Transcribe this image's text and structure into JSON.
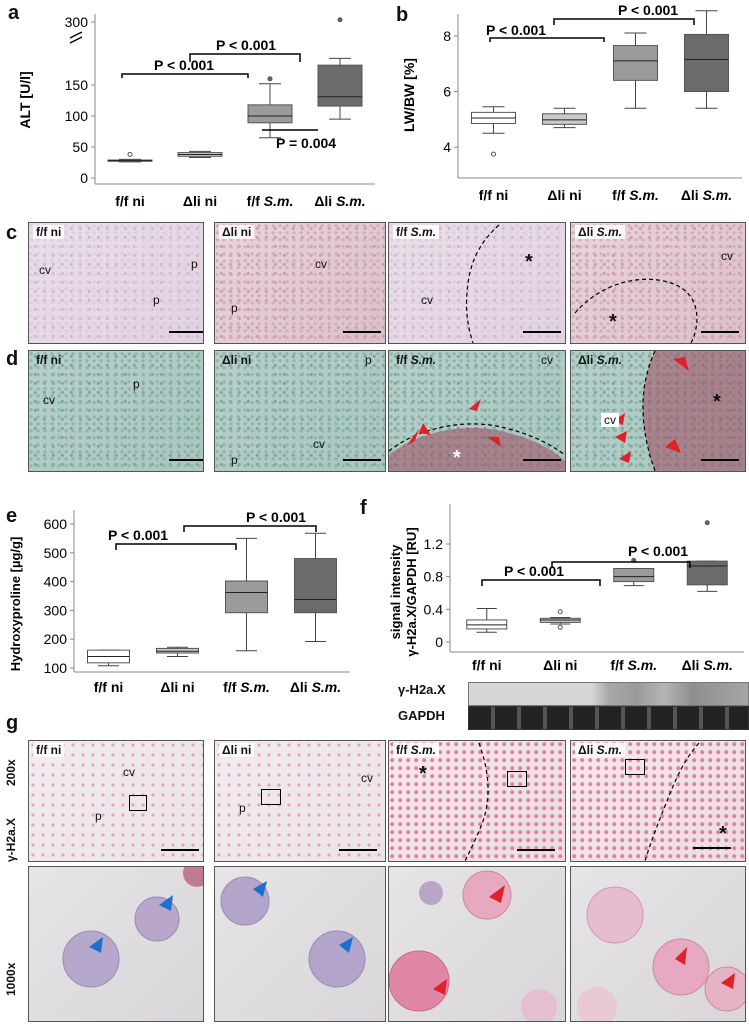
{
  "panel_letters": [
    "a",
    "b",
    "c",
    "d",
    "e",
    "f",
    "g"
  ],
  "groups": [
    "f/f ni",
    "Δli ni",
    "f/f S.m.",
    "Δli S.m."
  ],
  "group_parts": [
    [
      "f/f ni",
      ""
    ],
    [
      "Δli ni",
      ""
    ],
    [
      "f/f ",
      "S.m."
    ],
    [
      "Δli ",
      "S.m."
    ]
  ],
  "ylabels": {
    "a": "ALT [U/l]",
    "b": "LW/BW [%]",
    "e": "Hydroxyproline [µg/g]",
    "f_line1": "signal intensity",
    "f_line2": "γ-H2a.X/GAPDH [RU]"
  },
  "pvalues": {
    "a1": "P < 0.001",
    "a2": "P < 0.001",
    "a3": "P = 0.004",
    "b1": "P < 0.001",
    "b2": "P < 0.001",
    "e1": "P < 0.001",
    "e2": "P < 0.001",
    "f1": "P < 0.001",
    "f2": "P < 0.001"
  },
  "blot_labels": [
    "γ-H2a.X",
    "GAPDH"
  ],
  "g_row_labels": [
    "200x",
    "γ-H2a.X",
    "1000x"
  ],
  "histo_marks": {
    "cv": "cv",
    "p": "p",
    "star": "*"
  },
  "chart_data": [
    {
      "panel": "a",
      "type": "box",
      "ylabel": "ALT [U/l]",
      "categories": [
        "f/f ni",
        "Δli ni",
        "f/f S.m.",
        "Δli S.m."
      ],
      "yticks": [
        0,
        50,
        100,
        150,
        300
      ],
      "axis_break": true,
      "boxes": [
        {
          "min": 26,
          "q1": 27,
          "median": 28,
          "q3": 29,
          "max": 30,
          "outliers": [
            38
          ]
        },
        {
          "min": 33,
          "q1": 35,
          "median": 38,
          "q3": 41,
          "max": 43,
          "outliers": []
        },
        {
          "min": 65,
          "q1": 89,
          "median": 100,
          "q3": 118,
          "max": 152,
          "outliers": [
            160
          ]
        },
        {
          "min": 95,
          "q1": 116,
          "median": 131,
          "q3": 182,
          "max": 193,
          "outliers": [
            315
          ]
        }
      ]
    },
    {
      "panel": "b",
      "type": "box",
      "ylabel": "LW/BW [%]",
      "categories": [
        "f/f ni",
        "Δli ni",
        "f/f S.m.",
        "Δli S.m."
      ],
      "ylim": [
        3,
        9
      ],
      "yticks": [
        4,
        6,
        8
      ],
      "boxes": [
        {
          "min": 4.5,
          "q1": 4.85,
          "median": 5.05,
          "q3": 5.25,
          "max": 5.45,
          "outliers": [
            3.75
          ]
        },
        {
          "min": 4.7,
          "q1": 4.82,
          "median": 4.98,
          "q3": 5.2,
          "max": 5.4,
          "outliers": []
        },
        {
          "min": 5.4,
          "q1": 6.4,
          "median": 7.1,
          "q3": 7.65,
          "max": 8.1,
          "outliers": []
        },
        {
          "min": 5.4,
          "q1": 6.0,
          "median": 7.15,
          "q3": 8.05,
          "max": 8.9,
          "outliers": []
        }
      ]
    },
    {
      "panel": "e",
      "type": "box",
      "ylabel": "Hydroxyproline [µg/g]",
      "categories": [
        "f/f ni",
        "Δli ni",
        "f/f S.m.",
        "Δli S.m."
      ],
      "ylim": [
        80,
        620
      ],
      "yticks": [
        100,
        200,
        300,
        400,
        500,
        600
      ],
      "boxes": [
        {
          "min": 108,
          "q1": 118,
          "median": 140,
          "q3": 162,
          "max": 162,
          "outliers": []
        },
        {
          "min": 140,
          "q1": 152,
          "median": 158,
          "q3": 168,
          "max": 172,
          "outliers": []
        },
        {
          "min": 160,
          "q1": 292,
          "median": 362,
          "q3": 402,
          "max": 550,
          "outliers": []
        },
        {
          "min": 192,
          "q1": 292,
          "median": 338,
          "q3": 480,
          "max": 568,
          "outliers": []
        }
      ]
    },
    {
      "panel": "f",
      "type": "box",
      "ylabel": "signal intensity γ-H2a.X/GAPDH [RU]",
      "categories": [
        "f/f ni",
        "Δli ni",
        "f/f S.m.",
        "Δli S.m."
      ],
      "ylim": [
        -0.1,
        1.55
      ],
      "yticks": [
        0,
        0.4,
        0.8,
        1.2
      ],
      "boxes": [
        {
          "min": 0.12,
          "q1": 0.16,
          "median": 0.21,
          "q3": 0.27,
          "max": 0.41,
          "outliers": []
        },
        {
          "min": 0.22,
          "q1": 0.24,
          "median": 0.27,
          "q3": 0.29,
          "max": 0.3,
          "outliers": [
            0.18,
            0.37
          ]
        },
        {
          "min": 0.69,
          "q1": 0.74,
          "median": 0.8,
          "q3": 0.9,
          "max": 0.9,
          "outliers": [
            1.0
          ]
        },
        {
          "min": 0.62,
          "q1": 0.7,
          "median": 0.93,
          "q3": 0.99,
          "max": 0.99,
          "outliers": [
            1.46
          ]
        }
      ]
    }
  ],
  "colors": {
    "box_fills": [
      "#ffffff",
      "#c9c9c9",
      "#9b9b9b",
      "#6b6b6b"
    ],
    "arrow_red": "#e0202a",
    "arrow_blue": "#1f6fd0"
  }
}
